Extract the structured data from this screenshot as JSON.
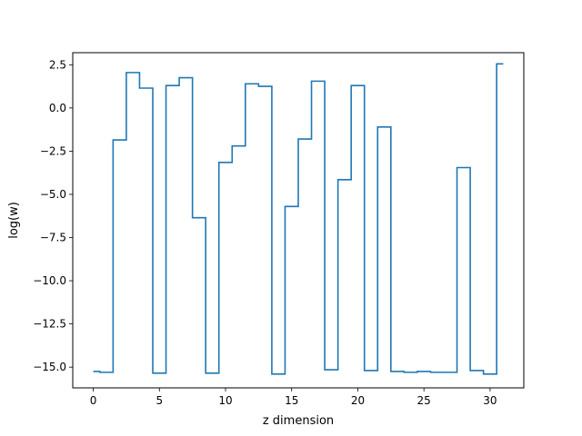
{
  "chart_data": {
    "type": "line",
    "drawstyle": "steps-mid",
    "xlabel": "z dimension",
    "ylabel": "log(w)",
    "xlim": [
      -1.55,
      32.55
    ],
    "ylim": [
      -16.2,
      3.2
    ],
    "xticks": [
      0,
      5,
      10,
      15,
      20,
      25,
      30
    ],
    "xtick_labels": [
      "0",
      "5",
      "10",
      "15",
      "20",
      "25",
      "30"
    ],
    "yticks": [
      2.5,
      0.0,
      -2.5,
      -5.0,
      -7.5,
      -10.0,
      -12.5,
      -15.0
    ],
    "ytick_labels": [
      "2.5",
      "0.0",
      "−2.5",
      "−5.0",
      "−7.5",
      "−10.0",
      "−12.5",
      "−15.0"
    ],
    "grid": false,
    "series": [
      {
        "color": "#1f77b4",
        "x": [
          0,
          1,
          2,
          3,
          4,
          5,
          6,
          7,
          8,
          9,
          10,
          11,
          12,
          13,
          14,
          15,
          16,
          17,
          18,
          19,
          20,
          21,
          22,
          23,
          24,
          25,
          26,
          27,
          28,
          29,
          30,
          31
        ],
        "y": [
          -15.25,
          -15.3,
          -1.85,
          2.05,
          1.15,
          -15.35,
          1.3,
          1.75,
          -6.35,
          -15.35,
          -3.15,
          -2.2,
          1.4,
          1.25,
          -15.4,
          -5.7,
          -1.8,
          1.55,
          -15.15,
          -4.15,
          1.3,
          -15.2,
          -1.1,
          -15.25,
          -15.3,
          -15.25,
          -15.3,
          -15.3,
          -3.45,
          -15.2,
          -15.4,
          2.55
        ]
      }
    ]
  }
}
